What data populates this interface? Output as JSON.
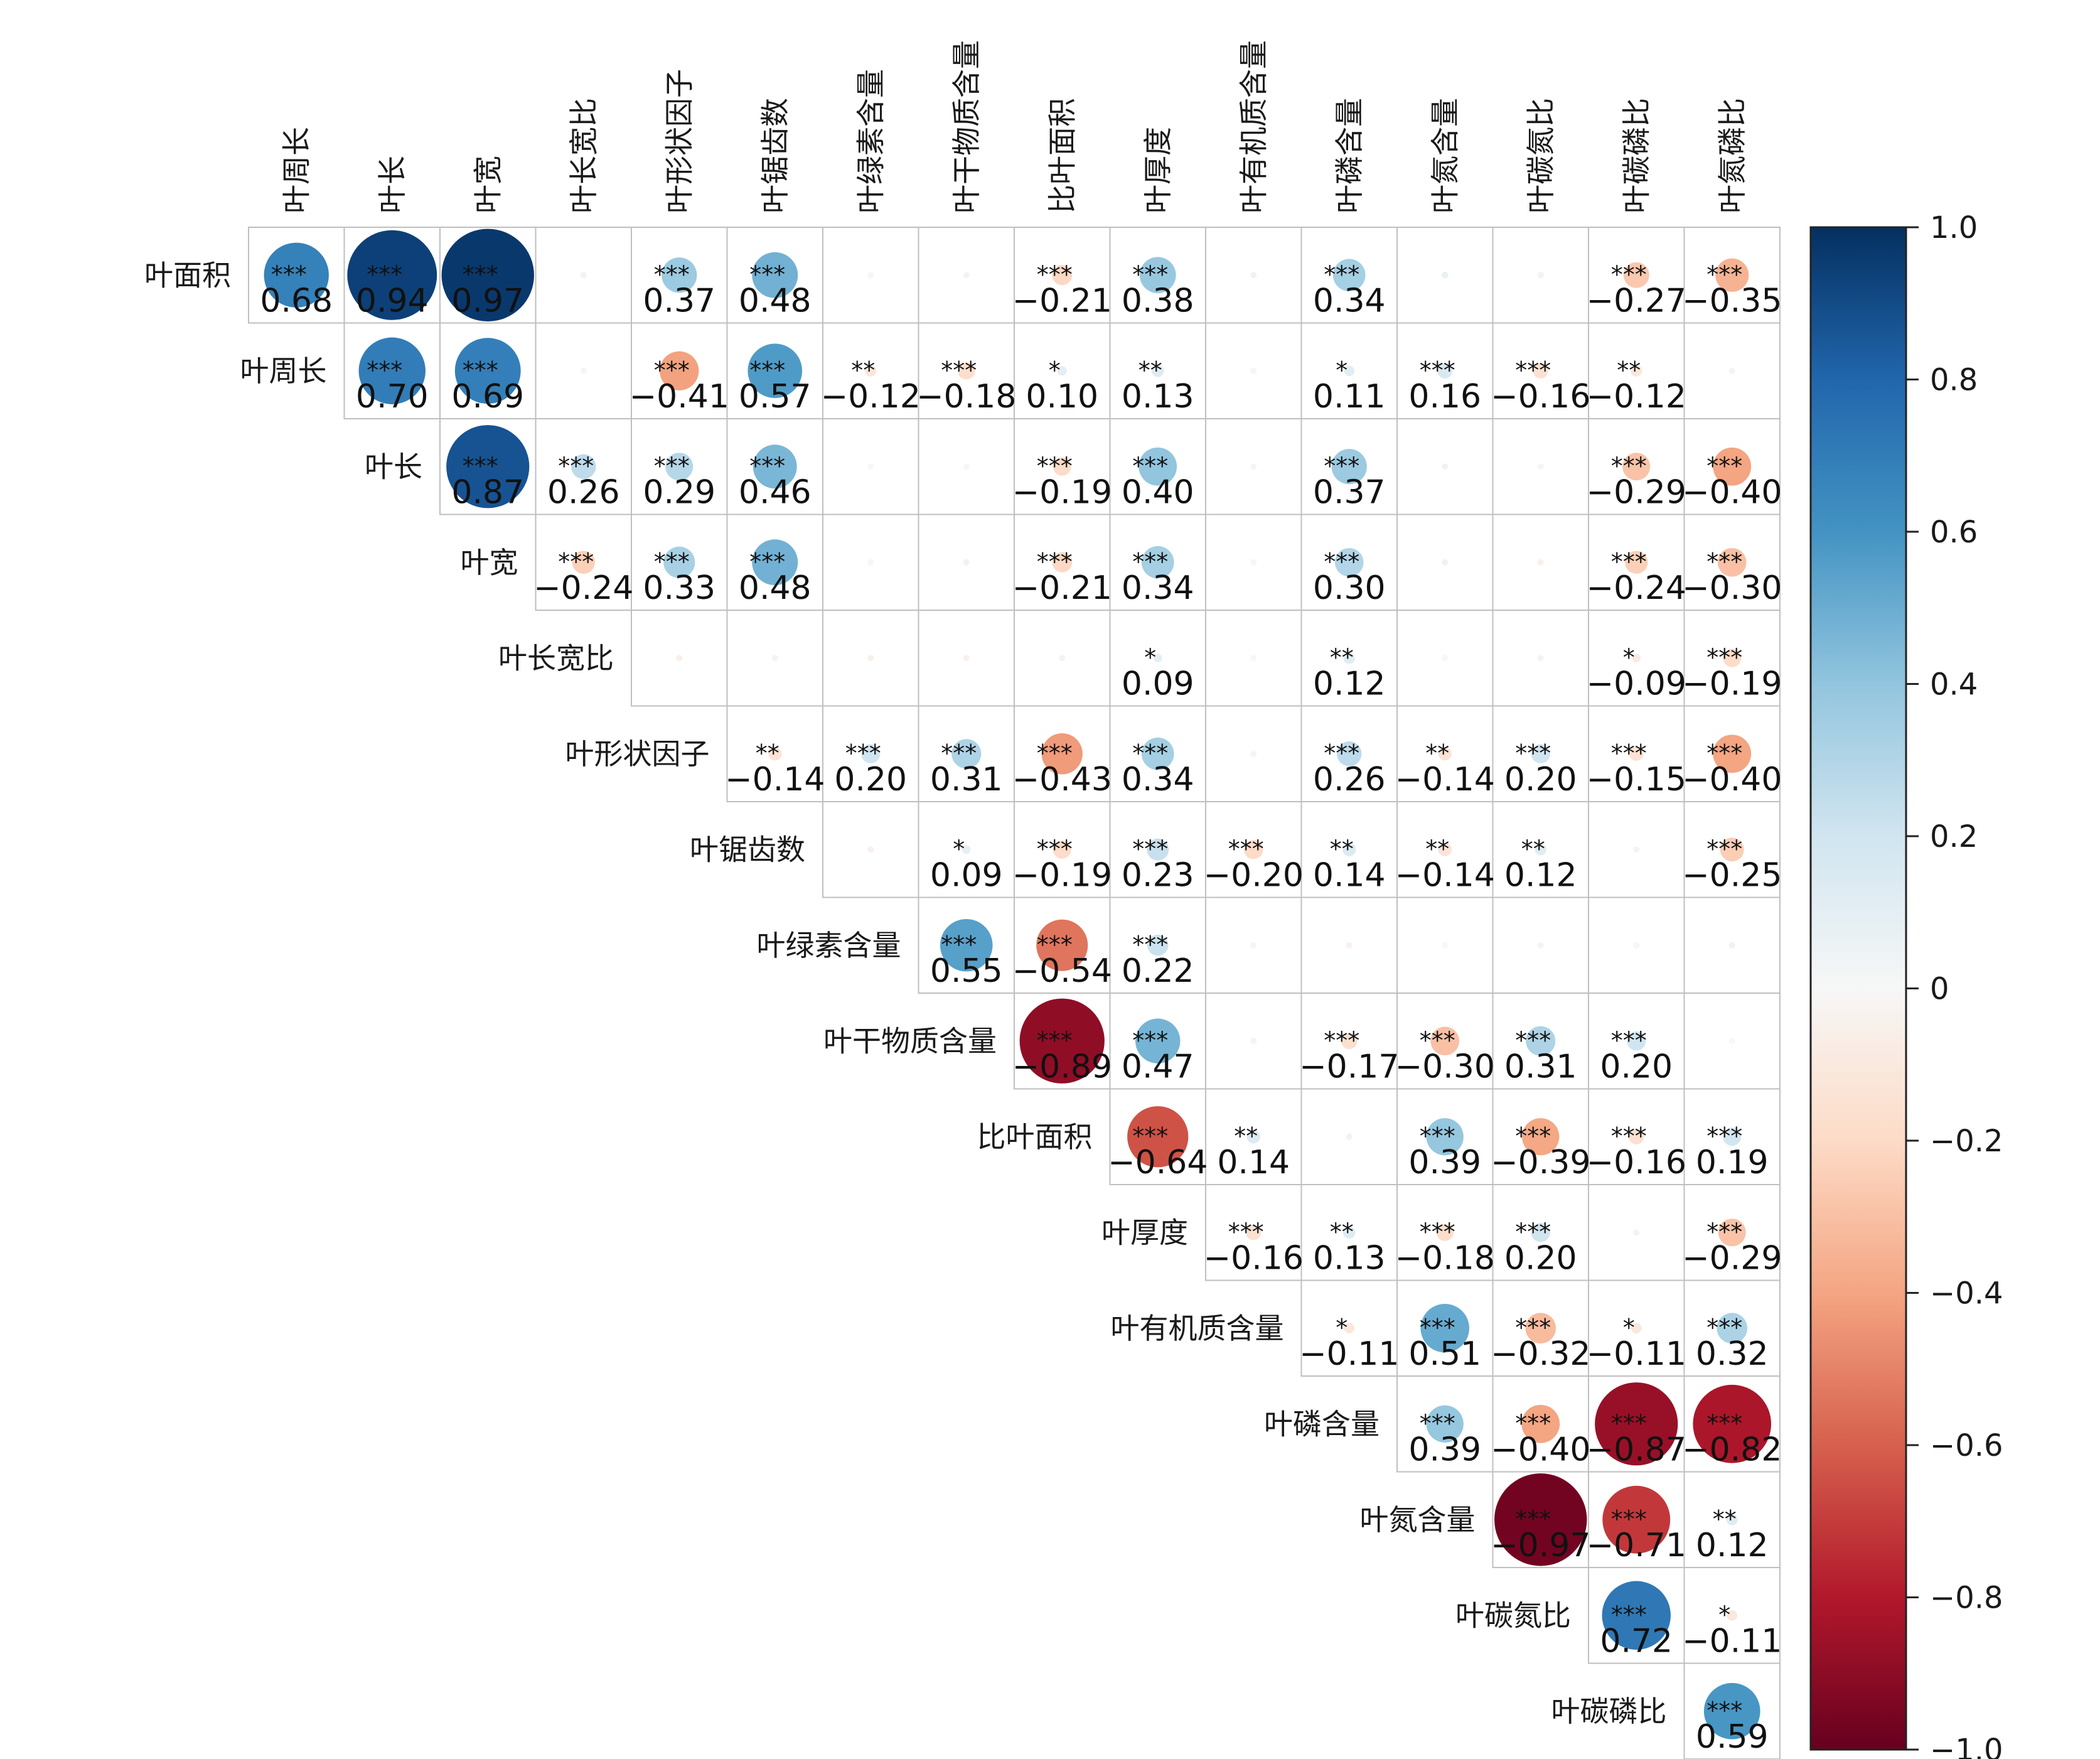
{
  "chart_data": {
    "type": "heatmap",
    "subtype": "correlation-circle-upper-triangle",
    "row_variables": [
      "叶面积",
      "叶周长",
      "叶长",
      "叶宽",
      "叶长宽比",
      "叶形状因子",
      "叶锯齿数",
      "叶绿素含量",
      "叶干物质含量",
      "比叶面积",
      "叶厚度",
      "叶有机质含量",
      "叶磷含量",
      "叶氮含量",
      "叶碳氮比",
      "叶碳磷比"
    ],
    "column_variables": [
      "叶周长",
      "叶长",
      "叶宽",
      "叶长宽比",
      "叶形状因子",
      "叶锯齿数",
      "叶绿素含量",
      "叶干物质含量",
      "比叶面积",
      "叶厚度",
      "叶有机质含量",
      "叶磷含量",
      "叶氮含量",
      "叶碳氮比",
      "叶碳磷比",
      "叶氮磷比"
    ],
    "rows": [
      {
        "cells": [
          {
            "r": 0.68,
            "label": "0.68",
            "stars": "***"
          },
          {
            "r": 0.94,
            "label": "0.94",
            "stars": "***"
          },
          {
            "r": 0.97,
            "label": "0.97",
            "stars": "***"
          },
          {
            "r": -0.04,
            "label": "",
            "stars": ""
          },
          {
            "r": 0.37,
            "label": "0.37",
            "stars": "***"
          },
          {
            "r": 0.48,
            "label": "0.48",
            "stars": "***"
          },
          {
            "r": 0.01,
            "label": "",
            "stars": ""
          },
          {
            "r": 0.03,
            "label": "",
            "stars": ""
          },
          {
            "r": -0.21,
            "label": "−0.21",
            "stars": "***"
          },
          {
            "r": 0.38,
            "label": "0.38",
            "stars": "***"
          },
          {
            "r": 0.05,
            "label": "",
            "stars": ""
          },
          {
            "r": 0.34,
            "label": "0.34",
            "stars": "***"
          },
          {
            "r": 0.07,
            "label": "",
            "stars": ""
          },
          {
            "r": -0.04,
            "label": "",
            "stars": ""
          },
          {
            "r": -0.27,
            "label": "−0.27",
            "stars": "***"
          },
          {
            "r": -0.35,
            "label": "−0.35",
            "stars": "***"
          }
        ]
      },
      {
        "cells": [
          {
            "r": 0.7,
            "label": "0.70",
            "stars": "***"
          },
          {
            "r": 0.69,
            "label": "0.69",
            "stars": "***"
          },
          {
            "r": 0.02,
            "label": "",
            "stars": ""
          },
          {
            "r": -0.41,
            "label": "−0.41",
            "stars": "***"
          },
          {
            "r": 0.57,
            "label": "0.57",
            "stars": "***"
          },
          {
            "r": -0.12,
            "label": "−0.12",
            "stars": "**"
          },
          {
            "r": -0.18,
            "label": "−0.18",
            "stars": "***"
          },
          {
            "r": 0.1,
            "label": "0.10",
            "stars": "*"
          },
          {
            "r": 0.13,
            "label": "0.13",
            "stars": "**"
          },
          {
            "r": -0.02,
            "label": "",
            "stars": ""
          },
          {
            "r": 0.11,
            "label": "0.11",
            "stars": "*"
          },
          {
            "r": 0.16,
            "label": "0.16",
            "stars": "***"
          },
          {
            "r": -0.16,
            "label": "−0.16",
            "stars": "***"
          },
          {
            "r": -0.12,
            "label": "−0.12",
            "stars": "**"
          },
          {
            "r": -0.03,
            "label": "",
            "stars": ""
          }
        ]
      },
      {
        "cells": [
          {
            "r": 0.87,
            "label": "0.87",
            "stars": "***"
          },
          {
            "r": 0.26,
            "label": "0.26",
            "stars": "***"
          },
          {
            "r": 0.29,
            "label": "0.29",
            "stars": "***"
          },
          {
            "r": 0.46,
            "label": "0.46",
            "stars": "***"
          },
          {
            "r": 0.0,
            "label": "",
            "stars": ""
          },
          {
            "r": 0.01,
            "label": "",
            "stars": ""
          },
          {
            "r": -0.19,
            "label": "−0.19",
            "stars": "***"
          },
          {
            "r": 0.4,
            "label": "0.40",
            "stars": "***"
          },
          {
            "r": 0.01,
            "label": "",
            "stars": ""
          },
          {
            "r": 0.37,
            "label": "0.37",
            "stars": "***"
          },
          {
            "r": 0.05,
            "label": "",
            "stars": ""
          },
          {
            "r": -0.02,
            "label": "",
            "stars": ""
          },
          {
            "r": -0.29,
            "label": "−0.29",
            "stars": "***"
          },
          {
            "r": -0.4,
            "label": "−0.40",
            "stars": "***"
          }
        ]
      },
      {
        "cells": [
          {
            "r": -0.24,
            "label": "−0.24",
            "stars": "***"
          },
          {
            "r": 0.33,
            "label": "0.33",
            "stars": "***"
          },
          {
            "r": 0.48,
            "label": "0.48",
            "stars": "***"
          },
          {
            "r": 0.01,
            "label": "",
            "stars": ""
          },
          {
            "r": 0.04,
            "label": "",
            "stars": ""
          },
          {
            "r": -0.21,
            "label": "−0.21",
            "stars": "***"
          },
          {
            "r": 0.34,
            "label": "0.34",
            "stars": "***"
          },
          {
            "r": 0.01,
            "label": "",
            "stars": ""
          },
          {
            "r": 0.3,
            "label": "0.30",
            "stars": "***"
          },
          {
            "r": 0.06,
            "label": "",
            "stars": ""
          },
          {
            "r": -0.05,
            "label": "",
            "stars": ""
          },
          {
            "r": -0.24,
            "label": "−0.24",
            "stars": "***"
          },
          {
            "r": -0.3,
            "label": "−0.30",
            "stars": "***"
          }
        ]
      },
      {
        "cells": [
          {
            "r": -0.06,
            "label": "",
            "stars": ""
          },
          {
            "r": -0.03,
            "label": "",
            "stars": ""
          },
          {
            "r": -0.05,
            "label": "",
            "stars": ""
          },
          {
            "r": -0.05,
            "label": "",
            "stars": ""
          },
          {
            "r": 0.03,
            "label": "",
            "stars": ""
          },
          {
            "r": 0.09,
            "label": "0.09",
            "stars": "*"
          },
          {
            "r": 0.0,
            "label": "",
            "stars": ""
          },
          {
            "r": 0.12,
            "label": "0.12",
            "stars": "**"
          },
          {
            "r": -0.01,
            "label": "",
            "stars": ""
          },
          {
            "r": 0.03,
            "label": "",
            "stars": ""
          },
          {
            "r": -0.09,
            "label": "−0.09",
            "stars": "*"
          },
          {
            "r": -0.19,
            "label": "−0.19",
            "stars": "***"
          }
        ]
      },
      {
        "cells": [
          {
            "r": -0.14,
            "label": "−0.14",
            "stars": "**"
          },
          {
            "r": 0.2,
            "label": "0.20",
            "stars": "***"
          },
          {
            "r": 0.31,
            "label": "0.31",
            "stars": "***"
          },
          {
            "r": -0.43,
            "label": "−0.43",
            "stars": "***"
          },
          {
            "r": 0.34,
            "label": "0.34",
            "stars": "***"
          },
          {
            "r": 0.02,
            "label": "",
            "stars": ""
          },
          {
            "r": 0.26,
            "label": "0.26",
            "stars": "***"
          },
          {
            "r": -0.14,
            "label": "−0.14",
            "stars": "**"
          },
          {
            "r": 0.2,
            "label": "0.20",
            "stars": "***"
          },
          {
            "r": -0.15,
            "label": "−0.15",
            "stars": "***"
          },
          {
            "r": -0.4,
            "label": "−0.40",
            "stars": "***"
          }
        ]
      },
      {
        "cells": [
          {
            "r": -0.04,
            "label": "",
            "stars": ""
          },
          {
            "r": 0.09,
            "label": "0.09",
            "stars": "*"
          },
          {
            "r": -0.19,
            "label": "−0.19",
            "stars": "***"
          },
          {
            "r": 0.23,
            "label": "0.23",
            "stars": "***"
          },
          {
            "r": -0.2,
            "label": "−0.20",
            "stars": "***"
          },
          {
            "r": 0.14,
            "label": "0.14",
            "stars": "**"
          },
          {
            "r": -0.14,
            "label": "−0.14",
            "stars": "**"
          },
          {
            "r": 0.12,
            "label": "0.12",
            "stars": "**"
          },
          {
            "r": -0.03,
            "label": "",
            "stars": ""
          },
          {
            "r": -0.25,
            "label": "−0.25",
            "stars": "***"
          }
        ]
      },
      {
        "cells": [
          {
            "r": 0.55,
            "label": "0.55",
            "stars": "***"
          },
          {
            "r": -0.54,
            "label": "−0.54",
            "stars": "***"
          },
          {
            "r": 0.22,
            "label": "0.22",
            "stars": "***"
          },
          {
            "r": 0.02,
            "label": "",
            "stars": ""
          },
          {
            "r": -0.04,
            "label": "",
            "stars": ""
          },
          {
            "r": 0.0,
            "label": "",
            "stars": ""
          },
          {
            "r": -0.03,
            "label": "",
            "stars": ""
          },
          {
            "r": -0.01,
            "label": "",
            "stars": ""
          },
          {
            "r": 0.05,
            "label": "",
            "stars": ""
          }
        ]
      },
      {
        "cells": [
          {
            "r": -0.89,
            "label": "−0.89",
            "stars": "***"
          },
          {
            "r": 0.47,
            "label": "0.47",
            "stars": "***"
          },
          {
            "r": -0.03,
            "label": "",
            "stars": ""
          },
          {
            "r": -0.17,
            "label": "−0.17",
            "stars": "***"
          },
          {
            "r": -0.3,
            "label": "−0.30",
            "stars": "***"
          },
          {
            "r": 0.31,
            "label": "0.31",
            "stars": "***"
          },
          {
            "r": 0.2,
            "label": "0.20",
            "stars": "***"
          },
          {
            "r": 0.0,
            "label": "",
            "stars": ""
          }
        ]
      },
      {
        "cells": [
          {
            "r": -0.64,
            "label": "−0.64",
            "stars": "***"
          },
          {
            "r": 0.14,
            "label": "0.14",
            "stars": "**"
          },
          {
            "r": 0.04,
            "label": "",
            "stars": ""
          },
          {
            "r": 0.39,
            "label": "0.39",
            "stars": "***"
          },
          {
            "r": -0.39,
            "label": "−0.39",
            "stars": "***"
          },
          {
            "r": -0.16,
            "label": "−0.16",
            "stars": "***"
          },
          {
            "r": 0.19,
            "label": "0.19",
            "stars": "***"
          }
        ]
      },
      {
        "cells": [
          {
            "r": -0.16,
            "label": "−0.16",
            "stars": "***"
          },
          {
            "r": 0.13,
            "label": "0.13",
            "stars": "**"
          },
          {
            "r": -0.18,
            "label": "−0.18",
            "stars": "***"
          },
          {
            "r": 0.2,
            "label": "0.20",
            "stars": "***"
          },
          {
            "r": -0.03,
            "label": "",
            "stars": ""
          },
          {
            "r": -0.29,
            "label": "−0.29",
            "stars": "***"
          }
        ]
      },
      {
        "cells": [
          {
            "r": -0.11,
            "label": "−0.11",
            "stars": "*"
          },
          {
            "r": 0.51,
            "label": "0.51",
            "stars": "***"
          },
          {
            "r": -0.32,
            "label": "−0.32",
            "stars": "***"
          },
          {
            "r": -0.11,
            "label": "−0.11",
            "stars": "*"
          },
          {
            "r": 0.32,
            "label": "0.32",
            "stars": "***"
          }
        ]
      },
      {
        "cells": [
          {
            "r": 0.39,
            "label": "0.39",
            "stars": "***"
          },
          {
            "r": -0.4,
            "label": "−0.40",
            "stars": "***"
          },
          {
            "r": -0.87,
            "label": "−0.87",
            "stars": "***"
          },
          {
            "r": -0.82,
            "label": "−0.82",
            "stars": "***"
          }
        ]
      },
      {
        "cells": [
          {
            "r": -0.97,
            "label": "−0.97",
            "stars": "***"
          },
          {
            "r": -0.71,
            "label": "−0.71",
            "stars": "***"
          },
          {
            "r": 0.12,
            "label": "0.12",
            "stars": "**"
          }
        ]
      },
      {
        "cells": [
          {
            "r": 0.72,
            "label": "0.72",
            "stars": "***"
          },
          {
            "r": -0.11,
            "label": "−0.11",
            "stars": "*"
          }
        ]
      },
      {
        "cells": [
          {
            "r": 0.59,
            "label": "0.59",
            "stars": "***"
          }
        ]
      }
    ],
    "color_scale": {
      "min": -1.0,
      "max": 1.0,
      "colormap": "RdBu",
      "stops": [
        "#67001f",
        "#b2182b",
        "#d6604d",
        "#f4a582",
        "#fddbc7",
        "#f7f7f7",
        "#d1e5f0",
        "#92c5de",
        "#4393c3",
        "#2166ac",
        "#053061"
      ]
    },
    "colorbar_ticks": [
      {
        "value": 1.0,
        "label": "1.0"
      },
      {
        "value": 0.8,
        "label": "0.8"
      },
      {
        "value": 0.6,
        "label": "0.6"
      },
      {
        "value": 0.4,
        "label": "0.4"
      },
      {
        "value": 0.2,
        "label": "0.2"
      },
      {
        "value": 0.0,
        "label": "0"
      },
      {
        "value": -0.2,
        "label": "−0.2"
      },
      {
        "value": -0.4,
        "label": "−0.4"
      },
      {
        "value": -0.6,
        "label": "−0.6"
      },
      {
        "value": -0.8,
        "label": "−0.8"
      },
      {
        "value": -1.0,
        "label": "−1.0"
      }
    ],
    "colors": {
      "grid": "#bfbfbf",
      "text": "#111111"
    }
  }
}
